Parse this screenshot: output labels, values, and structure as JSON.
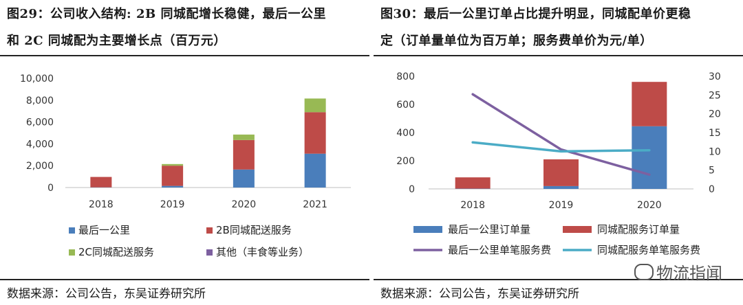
{
  "left": {
    "title_line1": "图29：公司收入结构: 2B 同城配增长稳健，最后一公里",
    "title_line2": "和 2C 同城配为主要增长点（百万元）",
    "source": "数据来源：公司公告，东吴证券研究所"
  },
  "right": {
    "title_line1": "图30：最后一公里订单占比提升明显，同城配单价更稳",
    "title_line2": "定（订单量单位为百万单；服务费单价为元/单）",
    "source": "数据来源：公司公告，东吴证券研究所"
  },
  "watermark": "物流指闻",
  "chart_data": [
    {
      "type": "bar",
      "stacked": true,
      "categories": [
        "2018",
        "2019",
        "2020",
        "2021"
      ],
      "ylim": [
        0,
        10000
      ],
      "yticks": [
        "0",
        "2,000",
        "4,000",
        "6,000",
        "8,000",
        "10,000"
      ],
      "series": [
        {
          "name": "最后一公里",
          "color": "#4a7ebb",
          "values": [
            20,
            150,
            1650,
            3100
          ]
        },
        {
          "name": "2B同城配送服务",
          "color": "#be4b48",
          "values": [
            950,
            1850,
            2700,
            3800
          ]
        },
        {
          "name": "2C同城配送服务",
          "color": "#98b954",
          "values": [
            0,
            150,
            500,
            1250
          ]
        },
        {
          "name": "其他（丰食等业务）",
          "color": "#7d60a0",
          "values": [
            0,
            0,
            0,
            0
          ]
        }
      ],
      "legend_placement": "bottom",
      "grid": false
    },
    {
      "type": "bar+line",
      "categories": [
        "2018",
        "2019",
        "2020"
      ],
      "ylim_left": [
        0,
        800
      ],
      "yticks_left": [
        "0",
        "200",
        "400",
        "600",
        "800"
      ],
      "ylim_right": [
        0,
        30
      ],
      "yticks_right": [
        "0",
        "5",
        "10",
        "15",
        "20",
        "25",
        "30"
      ],
      "bar_series": [
        {
          "name": "最后一公里订单量",
          "color": "#4a7ebb",
          "values": [
            2,
            20,
            445
          ]
        },
        {
          "name": "同城配服务订单量",
          "color": "#be4b48",
          "values": [
            80,
            190,
            315
          ]
        }
      ],
      "line_series": [
        {
          "name": "最后一公里单笔服务费",
          "color": "#7d60a0",
          "axis": "right",
          "values": [
            25.2,
            10.5,
            3.8
          ]
        },
        {
          "name": "同城配服务单笔服务费",
          "color": "#4bacc6",
          "axis": "right",
          "values": [
            12.4,
            10.0,
            10.3
          ]
        }
      ],
      "legend_placement": "bottom",
      "grid": false
    }
  ]
}
